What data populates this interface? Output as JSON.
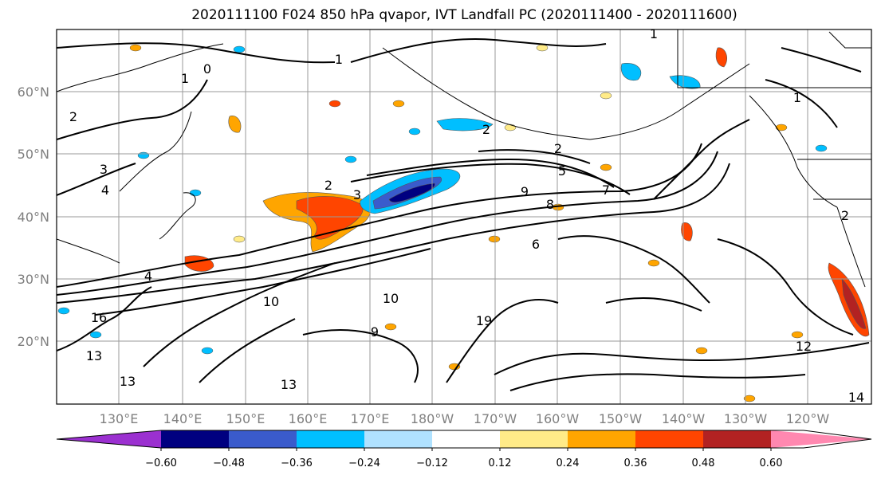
{
  "title": "2020111100 F024 850 hPa qvapor, IVT Landfall PC (2020111400 - 2020111600)",
  "lat_labels": [
    "60°N",
    "50°N",
    "40°N",
    "30°N",
    "20°N"
  ],
  "lon_labels": [
    "130°E",
    "140°E",
    "150°E",
    "160°E",
    "170°E",
    "180°W",
    "170°W",
    "160°W",
    "150°W",
    "140°W",
    "130°W",
    "120°W"
  ],
  "colorbar": {
    "colors": [
      "#9b30d0",
      "#000080",
      "#3a5bcc",
      "#00bfff",
      "#b0e2ff",
      "#ffffff",
      "#ffeb88",
      "#ffa500",
      "#ff4500",
      "#b22222",
      "#ff88b0"
    ],
    "tick_labels": [
      "−0.60",
      "−0.48",
      "−0.36",
      "−0.24",
      "−0.12",
      "0.12",
      "0.24",
      "0.36",
      "0.48",
      "0.60"
    ]
  },
  "contour_labels": [
    "1",
    "1",
    "0",
    "1",
    "2",
    "2",
    "2",
    "2",
    "3",
    "3",
    "4",
    "5",
    "9",
    "8",
    "7",
    "6",
    "4",
    "10",
    "10",
    "16",
    "13",
    "13",
    "13",
    "9",
    "19",
    "12",
    "14",
    "1",
    "2"
  ]
}
